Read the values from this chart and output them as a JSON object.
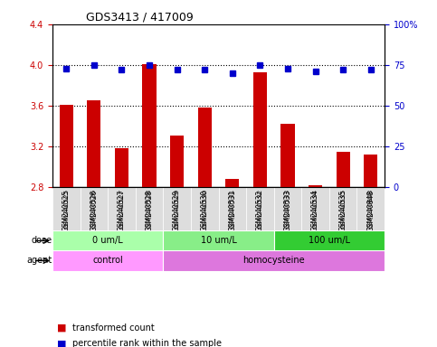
{
  "title": "GDS3413 / 417009",
  "samples": [
    "GSM240525",
    "GSM240526",
    "GSM240527",
    "GSM240528",
    "GSM240529",
    "GSM240530",
    "GSM240531",
    "GSM240532",
    "GSM240533",
    "GSM240534",
    "GSM240535",
    "GSM240848"
  ],
  "transformed_count": [
    3.61,
    3.65,
    3.18,
    4.01,
    3.31,
    3.58,
    2.88,
    3.93,
    3.42,
    2.82,
    3.15,
    3.12
  ],
  "percentile_rank": [
    73,
    75,
    72,
    75,
    72,
    72,
    70,
    75,
    73,
    71,
    72,
    72
  ],
  "ylim_left": [
    2.8,
    4.4
  ],
  "ylim_right": [
    0,
    100
  ],
  "yticks_left": [
    2.8,
    3.2,
    3.6,
    4.0,
    4.4
  ],
  "yticks_right": [
    0,
    25,
    50,
    75,
    100
  ],
  "ytick_labels_left": [
    "2.8",
    "3.2",
    "3.6",
    "4.0",
    "4.4"
  ],
  "ytick_labels_right": [
    "0",
    "25",
    "50",
    "75",
    "100%"
  ],
  "bar_color": "#cc0000",
  "dot_color": "#0000cc",
  "grid_color": "#000000",
  "dose_groups": [
    {
      "label": "0 um/L",
      "start": 0,
      "end": 3,
      "color": "#aaffaa"
    },
    {
      "label": "10 um/L",
      "start": 4,
      "end": 7,
      "color": "#88ee88"
    },
    {
      "label": "100 um/L",
      "start": 8,
      "end": 11,
      "color": "#33cc33"
    }
  ],
  "agent_groups": [
    {
      "label": "control",
      "start": 0,
      "end": 3,
      "color": "#ff99ff"
    },
    {
      "label": "homocysteine",
      "start": 4,
      "end": 11,
      "color": "#dd77dd"
    }
  ],
  "dose_label": "dose",
  "agent_label": "agent",
  "legend_bar_label": "transformed count",
  "legend_dot_label": "percentile rank within the sample",
  "background_color": "#ffffff",
  "sample_bg_color": "#dddddd"
}
